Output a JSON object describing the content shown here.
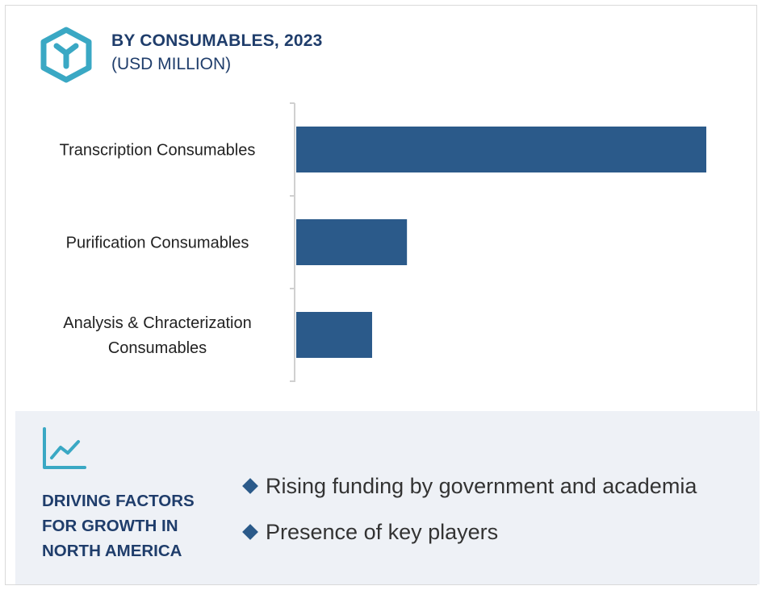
{
  "header": {
    "title": "BY CONSUMABLES, 2023",
    "subtitle": "(USD MILLION)",
    "icon": "cube-icon"
  },
  "colors": {
    "bar": "#2b5a8a",
    "title": "#1f3d6b",
    "icon": "#3aa8c4",
    "panel_bg": "#eef1f6"
  },
  "chart_data": {
    "type": "bar",
    "orientation": "horizontal",
    "title": "BY CONSUMABLES, 2023",
    "subtitle": "(USD MILLION)",
    "categories": [
      [
        "Transcription Consumables"
      ],
      [
        "Purification Consumables"
      ],
      [
        "Analysis & Chracterization",
        "Consumables"
      ]
    ],
    "values": [
      100,
      27,
      18.5
    ],
    "xlim": [
      0,
      100
    ],
    "grid": false,
    "legend": "none",
    "value_labels": false
  },
  "factors": {
    "icon": "line-chart-icon",
    "title_lines": [
      "DRIVING FACTORS",
      "FOR GROWTH IN",
      "NORTH AMERICA"
    ],
    "items": [
      "Rising funding by government and academia",
      "Presence of key players"
    ]
  }
}
